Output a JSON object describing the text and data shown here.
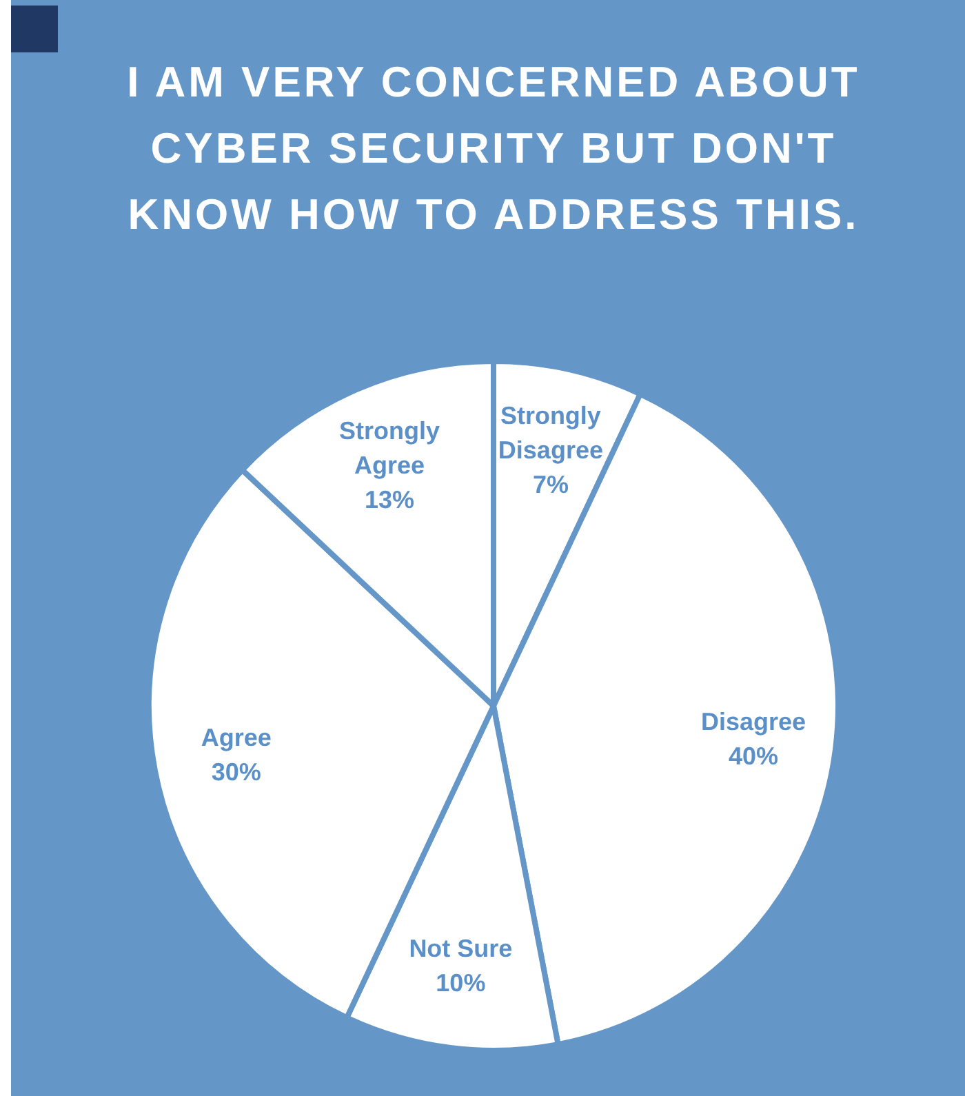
{
  "chart_data": {
    "type": "pie",
    "title": "I AM VERY CONCERNED ABOUT CYBER SECURITY BUT DON'T KNOW HOW TO ADDRESS THIS.",
    "categories": [
      "Strongly Disagree",
      "Disagree",
      "Not Sure",
      "Agree",
      "Strongly Agree"
    ],
    "values": [
      7,
      40,
      10,
      30,
      13
    ],
    "colors": [
      "#ffffff",
      "#ffffff",
      "#ffffff",
      "#ffffff",
      "#ffffff"
    ],
    "value_labels": [
      "7%",
      "40%",
      "10%",
      "30%",
      "13%"
    ]
  }
}
